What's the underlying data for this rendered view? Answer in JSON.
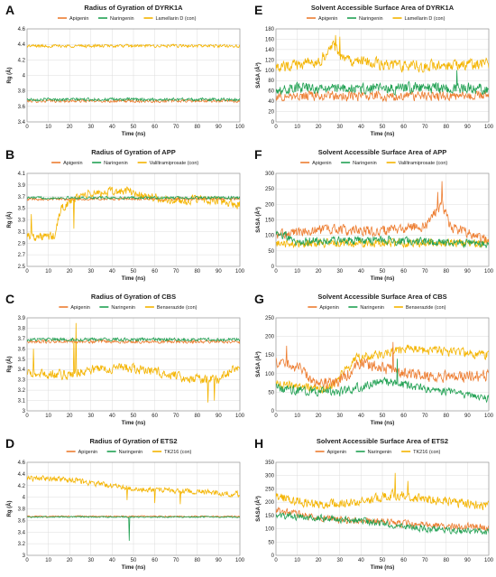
{
  "colors": {
    "apigenin": "#ed7d31",
    "naringenin": "#21a153",
    "control": "#f4b400"
  },
  "chart_data": [
    {
      "panel": "A",
      "type": "line",
      "title": "Radius of Gyration of DYRK1A",
      "xlabel": "Time (ns)",
      "ylabel": "Rg (Å)",
      "xlim": [
        0,
        100
      ],
      "ylim": [
        3.4,
        4.6
      ],
      "yticks": [
        "3.4",
        "3.6",
        "3.8",
        "4",
        "4.2",
        "4.4",
        "4.6"
      ],
      "xticks": [
        "0",
        "10",
        "20",
        "30",
        "40",
        "50",
        "60",
        "70",
        "80",
        "90",
        "100"
      ],
      "grid": true,
      "legend": "top",
      "series": [
        {
          "name": "Apigenin",
          "color_key": "apigenin",
          "base": 3.67,
          "noise": 0.025,
          "segments": [],
          "spikes": []
        },
        {
          "name": "Naringenin",
          "color_key": "naringenin",
          "base": 3.69,
          "noise": 0.025,
          "segments": [],
          "spikes": []
        },
        {
          "name": "Lamellarin D (con)",
          "color_key": "control",
          "base": 4.38,
          "noise": 0.025,
          "segments": [],
          "spikes": []
        }
      ]
    },
    {
      "panel": "B",
      "type": "line",
      "title": "Radius of Gyration of APP",
      "xlabel": "Time (ns)",
      "ylabel": "Rg (Å)",
      "xlim": [
        0,
        100
      ],
      "ylim": [
        2.5,
        4.1
      ],
      "yticks": [
        "2.5",
        "2.7",
        "2.9",
        "3.1",
        "3.3",
        "3.5",
        "3.7",
        "3.9",
        "4.1"
      ],
      "xticks": [
        "0",
        "10",
        "20",
        "30",
        "40",
        "50",
        "60",
        "70",
        "80",
        "90",
        "100"
      ],
      "grid": true,
      "legend": "top",
      "series": [
        {
          "name": "Apigenin",
          "color_key": "apigenin",
          "base": 3.66,
          "noise": 0.03,
          "segments": [],
          "spikes": []
        },
        {
          "name": "Naringenin",
          "color_key": "naringenin",
          "base": 3.68,
          "noise": 0.03,
          "segments": [],
          "spikes": []
        },
        {
          "name": "Valiltramiprosate (con)",
          "color_key": "control",
          "base": 3.65,
          "noise": 0.1,
          "segments": [
            [
              0,
              3.05
            ],
            [
              6,
              3.0
            ],
            [
              13,
              3.02
            ],
            [
              16,
              3.5
            ],
            [
              25,
              3.72
            ],
            [
              40,
              3.78
            ],
            [
              48,
              3.8
            ],
            [
              55,
              3.7
            ],
            [
              70,
              3.62
            ],
            [
              85,
              3.65
            ],
            [
              100,
              3.55
            ]
          ],
          "spikes": [
            [
              2,
              3.4
            ],
            [
              22,
              3.15
            ]
          ]
        }
      ]
    },
    {
      "panel": "C",
      "type": "line",
      "title": "Radius of Gyration of CBS",
      "xlabel": "Time (ns)",
      "ylabel": "Rg (Å)",
      "xlim": [
        0,
        100
      ],
      "ylim": [
        3.0,
        3.9
      ],
      "yticks": [
        "3",
        "3.1",
        "3.2",
        "3.3",
        "3.4",
        "3.5",
        "3.6",
        "3.7",
        "3.8",
        "3.9"
      ],
      "xticks": [
        "0",
        "10",
        "20",
        "30",
        "40",
        "50",
        "60",
        "70",
        "80",
        "90",
        "100"
      ],
      "grid": true,
      "legend": "top",
      "series": [
        {
          "name": "Apigenin",
          "color_key": "apigenin",
          "base": 3.67,
          "noise": 0.02,
          "segments": [],
          "spikes": []
        },
        {
          "name": "Naringenin",
          "color_key": "naringenin",
          "base": 3.69,
          "noise": 0.02,
          "segments": [],
          "spikes": []
        },
        {
          "name": "Benserazide (con)",
          "color_key": "control",
          "base": 3.38,
          "noise": 0.06,
          "segments": [
            [
              0,
              3.36
            ],
            [
              20,
              3.35
            ],
            [
              30,
              3.4
            ],
            [
              45,
              3.42
            ],
            [
              60,
              3.38
            ],
            [
              75,
              3.32
            ],
            [
              90,
              3.3
            ],
            [
              100,
              3.45
            ]
          ],
          "spikes": [
            [
              23,
              3.85
            ],
            [
              22,
              3.7
            ],
            [
              3,
              3.6
            ],
            [
              85,
              3.08
            ],
            [
              88,
              3.1
            ]
          ]
        }
      ]
    },
    {
      "panel": "D",
      "type": "line",
      "title": "Radius of Gyration of ETS2",
      "xlabel": "Time (ns)",
      "ylabel": "Rg (Å)",
      "xlim": [
        0,
        100
      ],
      "ylim": [
        3.0,
        4.6
      ],
      "yticks": [
        "3",
        "3.2",
        "3.4",
        "3.6",
        "3.8",
        "4",
        "4.2",
        "4.4",
        "4.6"
      ],
      "xticks": [
        "0",
        "10",
        "20",
        "30",
        "40",
        "50",
        "60",
        "70",
        "80",
        "90",
        "100"
      ],
      "grid": true,
      "legend": "top",
      "series": [
        {
          "name": "Apigenin",
          "color_key": "apigenin",
          "base": 3.67,
          "noise": 0.015,
          "segments": [],
          "spikes": []
        },
        {
          "name": "Naringenin",
          "color_key": "naringenin",
          "base": 3.66,
          "noise": 0.015,
          "segments": [],
          "spikes": [
            [
              48,
              3.25
            ]
          ]
        },
        {
          "name": "TK216 (con)",
          "color_key": "control",
          "base": 4.2,
          "noise": 0.06,
          "segments": [
            [
              0,
              4.33
            ],
            [
              20,
              4.3
            ],
            [
              35,
              4.22
            ],
            [
              50,
              4.15
            ],
            [
              65,
              4.12
            ],
            [
              80,
              4.1
            ],
            [
              100,
              4.05
            ]
          ],
          "spikes": [
            [
              47,
              3.95
            ],
            [
              72,
              3.88
            ],
            [
              60,
              3.9
            ]
          ]
        }
      ]
    },
    {
      "panel": "E",
      "type": "line",
      "title": "Solvent Accessible Surface Area of DYRK1A",
      "xlabel": "Time (ns)",
      "ylabel": "SASA (Å²)",
      "xlim": [
        0,
        100
      ],
      "ylim": [
        0,
        180
      ],
      "yticks": [
        "0",
        "20",
        "40",
        "60",
        "80",
        "100",
        "120",
        "140",
        "160",
        "180"
      ],
      "xticks": [
        "0",
        "10",
        "20",
        "30",
        "40",
        "50",
        "60",
        "70",
        "80",
        "90",
        "100"
      ],
      "grid": true,
      "legend": "top",
      "series": [
        {
          "name": "Apigenin",
          "color_key": "apigenin",
          "base": 50,
          "noise": 12,
          "segments": [],
          "spikes": []
        },
        {
          "name": "Naringenin",
          "color_key": "naringenin",
          "base": 65,
          "noise": 14,
          "segments": [],
          "spikes": [
            [
              85,
              100
            ]
          ]
        },
        {
          "name": "Lamellarin D (con)",
          "color_key": "control",
          "base": 110,
          "noise": 14,
          "segments": [
            [
              0,
              105
            ],
            [
              20,
              115
            ],
            [
              27,
              150
            ],
            [
              32,
              120
            ],
            [
              60,
              108
            ],
            [
              100,
              112
            ]
          ],
          "spikes": [
            [
              28,
              168
            ],
            [
              30,
              165
            ]
          ]
        }
      ]
    },
    {
      "panel": "F",
      "type": "line",
      "title": "Solvent Accessible Surface Area of APP",
      "xlabel": "Time (ns)",
      "ylabel": "SASA (Å²)",
      "xlim": [
        0,
        100
      ],
      "ylim": [
        0,
        300
      ],
      "yticks": [
        "0",
        "50",
        "100",
        "150",
        "200",
        "250",
        "300"
      ],
      "xticks": [
        "0",
        "10",
        "20",
        "30",
        "40",
        "50",
        "60",
        "70",
        "80",
        "90",
        "100"
      ],
      "grid": true,
      "legend": "top",
      "series": [
        {
          "name": "Apigenin",
          "color_key": "apigenin",
          "base": 115,
          "noise": 22,
          "segments": [
            [
              0,
              100
            ],
            [
              20,
              120
            ],
            [
              50,
              115
            ],
            [
              70,
              130
            ],
            [
              78,
              200
            ],
            [
              82,
              130
            ],
            [
              100,
              80
            ]
          ],
          "spikes": [
            [
              78,
              275
            ],
            [
              76,
              240
            ]
          ]
        },
        {
          "name": "Naringenin",
          "color_key": "naringenin",
          "base": 80,
          "noise": 18,
          "segments": [
            [
              0,
              110
            ],
            [
              10,
              80
            ],
            [
              50,
              85
            ],
            [
              100,
              70
            ]
          ],
          "spikes": []
        },
        {
          "name": "Valiltramiprosate (con)",
          "color_key": "control",
          "base": 75,
          "noise": 18,
          "segments": [],
          "spikes": []
        }
      ]
    },
    {
      "panel": "G",
      "type": "line",
      "title": "Solvent Accessible Surface Area of CBS",
      "xlabel": "Time (ns)",
      "ylabel": "SASA (Å²)",
      "xlim": [
        0,
        100
      ],
      "ylim": [
        0,
        250
      ],
      "yticks": [
        "0",
        "50",
        "100",
        "150",
        "200",
        "250"
      ],
      "xticks": [
        "0",
        "10",
        "20",
        "30",
        "40",
        "50",
        "60",
        "70",
        "80",
        "90",
        "100"
      ],
      "grid": true,
      "legend": "top",
      "series": [
        {
          "name": "Apigenin",
          "color_key": "apigenin",
          "base": 100,
          "noise": 20,
          "segments": [
            [
              0,
              130
            ],
            [
              10,
              120
            ],
            [
              20,
              70
            ],
            [
              30,
              80
            ],
            [
              40,
              130
            ],
            [
              55,
              110
            ],
            [
              70,
              90
            ],
            [
              100,
              95
            ]
          ],
          "spikes": [
            [
              5,
              175
            ],
            [
              55,
              185
            ]
          ]
        },
        {
          "name": "Naringenin",
          "color_key": "naringenin",
          "base": 60,
          "noise": 15,
          "segments": [
            [
              0,
              60
            ],
            [
              30,
              50
            ],
            [
              50,
              80
            ],
            [
              70,
              60
            ],
            [
              100,
              35
            ]
          ],
          "spikes": [
            [
              57,
              140
            ]
          ]
        },
        {
          "name": "Benserazide (con)",
          "color_key": "control",
          "base": 140,
          "noise": 16,
          "segments": [
            [
              0,
              70
            ],
            [
              25,
              60
            ],
            [
              38,
              140
            ],
            [
              60,
              165
            ],
            [
              80,
              160
            ],
            [
              100,
              150
            ]
          ],
          "spikes": []
        }
      ]
    },
    {
      "panel": "H",
      "type": "line",
      "title": "Solvent Accessible Surface Area of ETS2",
      "xlabel": "Time (ns)",
      "ylabel": "SASA (Å²)",
      "xlim": [
        0,
        100
      ],
      "ylim": [
        0,
        350
      ],
      "yticks": [
        "0",
        "50",
        "100",
        "150",
        "200",
        "250",
        "300",
        "350"
      ],
      "xticks": [
        "0",
        "10",
        "20",
        "30",
        "40",
        "50",
        "60",
        "70",
        "80",
        "90",
        "100"
      ],
      "grid": true,
      "legend": "top",
      "series": [
        {
          "name": "Apigenin",
          "color_key": "apigenin",
          "base": 130,
          "noise": 18,
          "segments": [
            [
              0,
              170
            ],
            [
              20,
              140
            ],
            [
              50,
              125
            ],
            [
              80,
              110
            ],
            [
              100,
              105
            ]
          ],
          "spikes": []
        },
        {
          "name": "Naringenin",
          "color_key": "naringenin",
          "base": 120,
          "noise": 16,
          "segments": [
            [
              0,
              150
            ],
            [
              40,
              130
            ],
            [
              70,
              100
            ],
            [
              100,
              85
            ]
          ],
          "spikes": []
        },
        {
          "name": "TK216 (con)",
          "color_key": "control",
          "base": 200,
          "noise": 22,
          "segments": [
            [
              0,
              220
            ],
            [
              20,
              190
            ],
            [
              40,
              200
            ],
            [
              55,
              230
            ],
            [
              70,
              210
            ],
            [
              100,
              185
            ]
          ],
          "spikes": [
            [
              56,
              310
            ],
            [
              62,
              280
            ]
          ]
        }
      ]
    }
  ]
}
